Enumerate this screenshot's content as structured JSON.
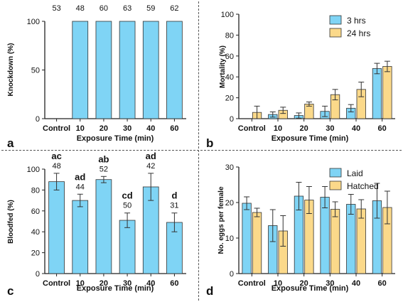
{
  "colors": {
    "blue": "#7fd4f5",
    "yellow": "#fbd98a",
    "axis": "#222222"
  },
  "chart_data": [
    {
      "type": "bar",
      "panel_letter": "a",
      "xlabel": "Exposure Time (min)",
      "ylabel": "Knockdown (%)",
      "categories": [
        "Control",
        "10",
        "20",
        "30",
        "40",
        "60"
      ],
      "values": [
        0,
        100,
        100,
        100,
        100,
        100
      ],
      "top_labels": [
        "53",
        "48",
        "60",
        "63",
        "59",
        "62"
      ],
      "ylim": [
        0,
        100
      ],
      "yticks": [
        "0",
        "50",
        "100"
      ],
      "grid": false
    },
    {
      "type": "bar",
      "panel_letter": "b",
      "xlabel": "Exposure Time (min)",
      "ylabel": "Mortality (%)",
      "categories": [
        "Control",
        "10",
        "20",
        "30",
        "40",
        "60"
      ],
      "series": [
        {
          "name": "3 hrs",
          "values": [
            0,
            4,
            3,
            7,
            10,
            48
          ],
          "errors": [
            0,
            2.5,
            2.5,
            5,
            3.5,
            5
          ]
        },
        {
          "name": "24 hrs",
          "values": [
            6,
            8,
            14,
            23,
            28,
            50
          ],
          "errors": [
            6,
            3,
            2,
            5,
            7,
            5
          ]
        }
      ],
      "ylim": [
        0,
        100
      ],
      "yticks": [
        "0",
        "20",
        "40",
        "60",
        "80",
        "100"
      ],
      "legend": "top-right",
      "grid": false
    },
    {
      "type": "bar",
      "panel_letter": "c",
      "xlabel": "Exposure Time (min)",
      "ylabel": "Bloodfed (%)",
      "categories": [
        "Control",
        "10",
        "20",
        "30",
        "40",
        "60"
      ],
      "values": [
        88,
        70,
        90,
        51,
        83,
        49
      ],
      "errors": [
        8,
        6,
        3,
        7,
        13,
        9
      ],
      "letters": [
        "ac",
        "ad",
        "ab",
        "cd",
        "ad",
        "d"
      ],
      "counts": [
        "48",
        "44",
        "52",
        "50",
        "42",
        "31"
      ],
      "ylim": [
        0,
        100
      ],
      "yticks": [
        "0",
        "20",
        "40",
        "60",
        "80",
        "100"
      ],
      "grid": false
    },
    {
      "type": "bar",
      "panel_letter": "d",
      "xlabel": "Exposure Time (min)",
      "ylabel": "No. eggs per female",
      "categories": [
        "Control",
        "10",
        "20",
        "30",
        "40",
        "60"
      ],
      "series": [
        {
          "name": "Laid",
          "values": [
            19.8,
            13.5,
            21.8,
            21.5,
            19.5,
            20.5
          ],
          "errors": [
            1.8,
            4.5,
            3.9,
            3.0,
            2.8,
            4.9
          ]
        },
        {
          "name": "Hatched",
          "values": [
            17.2,
            12.0,
            20.7,
            18.1,
            18.2,
            18.6
          ],
          "errors": [
            1.2,
            4.3,
            3.8,
            2.1,
            2.6,
            4.6
          ]
        }
      ],
      "ylim": [
        0,
        30
      ],
      "yticks": [
        "0",
        "10",
        "20",
        "30"
      ],
      "legend": "top-right",
      "grid": false
    }
  ]
}
